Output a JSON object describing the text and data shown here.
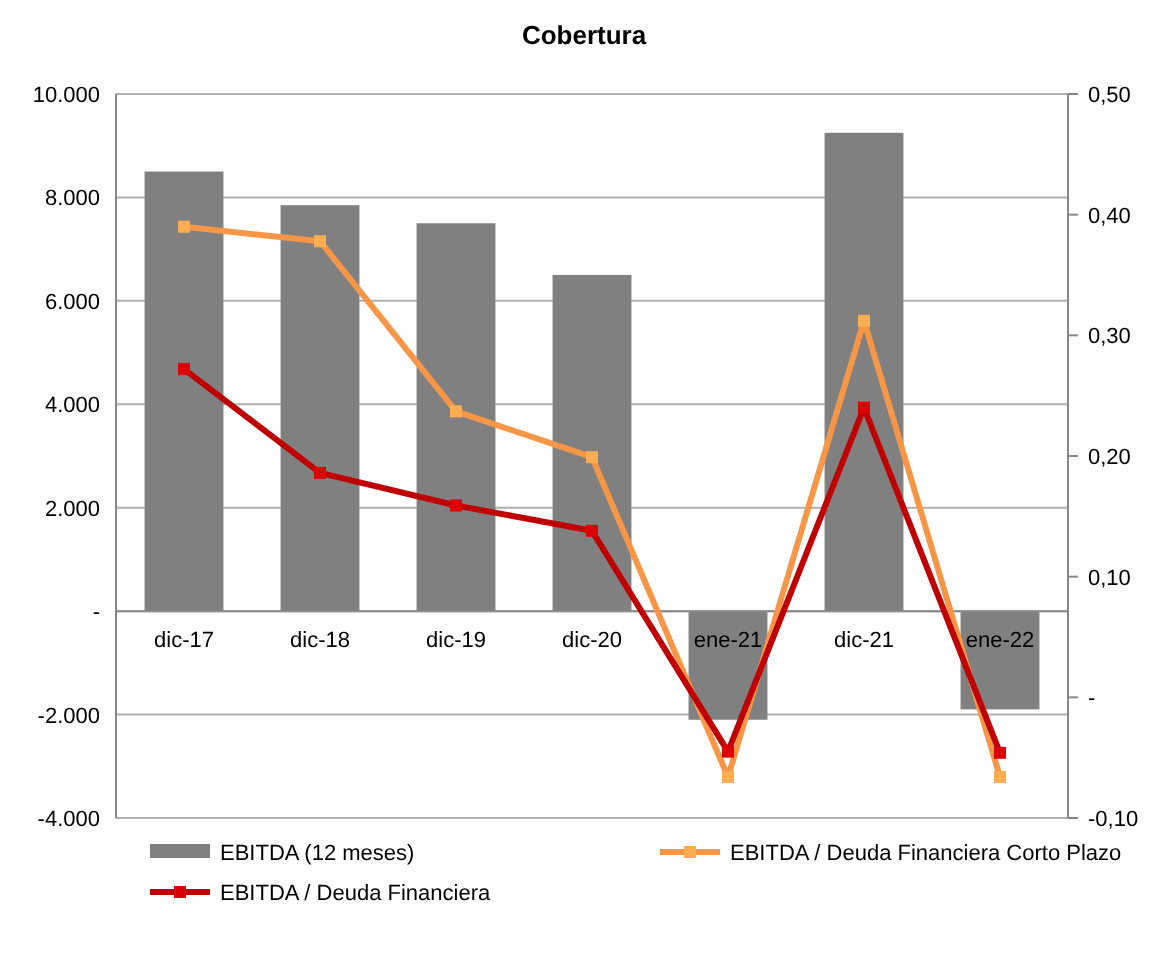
{
  "chart_data": {
    "type": "bar",
    "title": "Cobertura",
    "categories": [
      "dic-17",
      "dic-18",
      "dic-19",
      "dic-20",
      "ene-21",
      "dic-21",
      "ene-22"
    ],
    "series": [
      {
        "name": "EBITDA (12 meses)",
        "color": "#808080",
        "values": [
          8500,
          7850,
          7500,
          6500,
          -2100,
          9250,
          -1900
        ]
      },
      {
        "name": "EBITDA / Deuda Financiera Corto Plazo",
        "type": "line",
        "axis": "y2",
        "color": "#f79646",
        "values": [
          0.39,
          0.378,
          0.237,
          0.199,
          -0.066,
          0.312,
          -0.066
        ]
      },
      {
        "name": "EBITDA / Deuda Financiera",
        "type": "line",
        "axis": "y2",
        "color": "#c00000",
        "values": [
          0.272,
          0.186,
          0.159,
          0.138,
          -0.045,
          0.24,
          -0.046
        ]
      }
    ],
    "ylim": [
      -4000,
      10000
    ],
    "yticks": [
      {
        "value": -4000,
        "label": "-4.000"
      },
      {
        "value": -2000,
        "label": "-2.000"
      },
      {
        "value": 0,
        "label": "-"
      },
      {
        "value": 2000,
        "label": "2.000"
      },
      {
        "value": 4000,
        "label": "4.000"
      },
      {
        "value": 6000,
        "label": "6.000"
      },
      {
        "value": 8000,
        "label": "8.000"
      },
      {
        "value": 10000,
        "label": "10.000"
      }
    ],
    "y2lim": [
      -0.1,
      0.5
    ],
    "y2ticks": [
      {
        "value": -0.1,
        "label": "-0,10"
      },
      {
        "value": 0,
        "label": "-"
      },
      {
        "value": 0.1,
        "label": "0,10"
      },
      {
        "value": 0.2,
        "label": "0,20"
      },
      {
        "value": 0.3,
        "label": "0,30"
      },
      {
        "value": 0.4,
        "label": "0,40"
      },
      {
        "value": 0.5,
        "label": "0,50"
      }
    ],
    "grid": "y",
    "legend": "bottom",
    "marker": "square",
    "line_style": "solid"
  }
}
